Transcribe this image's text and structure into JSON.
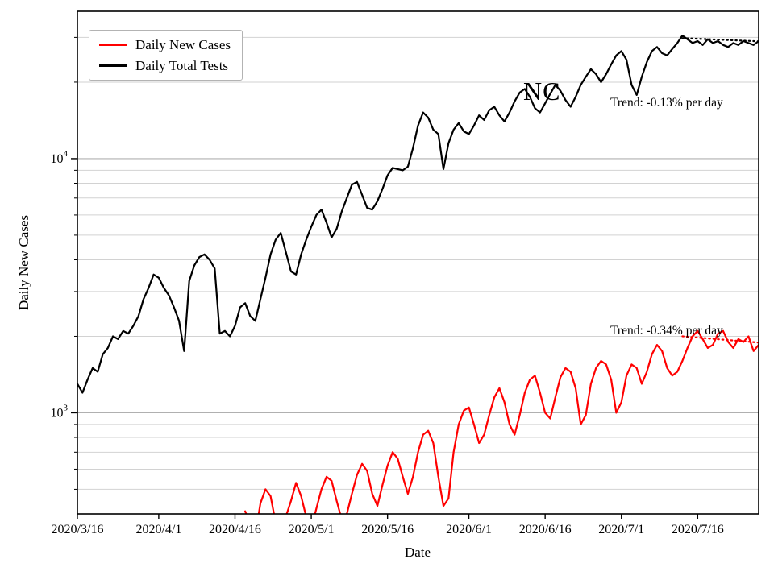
{
  "chart_data": {
    "type": "line",
    "title": "",
    "xlabel": "Date",
    "ylabel": "Daily New Cases",
    "yscale": "log",
    "ylim": [
      400,
      38000
    ],
    "y_major_ticks": [
      1000,
      10000
    ],
    "n_days": 135,
    "x_start_date": "2020/3/16",
    "x_tick_labels": [
      "2020/3/16",
      "2020/4/1",
      "2020/4/16",
      "2020/5/1",
      "2020/5/16",
      "2020/6/1",
      "2020/6/16",
      "2020/7/1",
      "2020/7/16"
    ],
    "x_tick_days": [
      0,
      16,
      31,
      46,
      61,
      77,
      92,
      107,
      122
    ],
    "grid": "horizontal major+minor",
    "legend": {
      "position": "upper-left",
      "entries": [
        {
          "label": "Daily New Cases",
          "color": "#ff0000"
        },
        {
          "label": "Daily Total Tests",
          "color": "#000000"
        }
      ]
    },
    "annotations": {
      "state_label": {
        "text": "NC"
      },
      "trend_tests": {
        "text": "Trend: -0.13% per day"
      },
      "trend_cases": {
        "text": "Trend: -0.34% per day"
      }
    },
    "series": [
      {
        "name": "Daily Total Tests",
        "color": "#000000",
        "values": [
          1300,
          1200,
          1350,
          1500,
          1450,
          1700,
          1800,
          2000,
          1950,
          2100,
          2050,
          2200,
          2400,
          2800,
          3100,
          3500,
          3400,
          3100,
          2900,
          2600,
          2300,
          1750,
          3300,
          3800,
          4100,
          4200,
          4000,
          3700,
          2050,
          2100,
          2000,
          2200,
          2600,
          2700,
          2400,
          2300,
          2800,
          3400,
          4200,
          4800,
          5100,
          4300,
          3600,
          3500,
          4200,
          4800,
          5400,
          6000,
          6300,
          5600,
          4900,
          5300,
          6200,
          7000,
          7900,
          8100,
          7200,
          6400,
          6300,
          6800,
          7600,
          8600,
          9200,
          9100,
          9000,
          9300,
          11000,
          13500,
          15200,
          14500,
          13000,
          12500,
          9100,
          11500,
          13000,
          13800,
          12800,
          12500,
          13500,
          14800,
          14200,
          15500,
          16000,
          14800,
          14000,
          15200,
          16800,
          18200,
          18800,
          17500,
          15800,
          15200,
          16500,
          18000,
          19500,
          18500,
          17000,
          16000,
          17500,
          19500,
          21000,
          22500,
          21500,
          20000,
          21500,
          23500,
          25500,
          26500,
          24500,
          19500,
          17800,
          21000,
          24000,
          26500,
          27500,
          26000,
          25500,
          27000,
          28500,
          30500,
          29500,
          28500,
          29000,
          28000,
          29500,
          28500,
          29000,
          28000,
          27500,
          28500,
          28000,
          29000,
          28500,
          28000,
          29000
        ]
      },
      {
        "name": "Daily New Cases",
        "color": "#ff0000",
        "values": [
          null,
          null,
          null,
          null,
          null,
          null,
          null,
          null,
          null,
          null,
          null,
          null,
          null,
          null,
          null,
          null,
          null,
          null,
          null,
          null,
          null,
          null,
          null,
          null,
          null,
          null,
          null,
          null,
          null,
          null,
          null,
          null,
          null,
          410,
          360,
          330,
          440,
          500,
          470,
          370,
          330,
          390,
          450,
          530,
          470,
          390,
          350,
          420,
          500,
          560,
          540,
          450,
          380,
          400,
          480,
          570,
          630,
          590,
          480,
          430,
          520,
          620,
          700,
          660,
          560,
          480,
          560,
          700,
          820,
          850,
          760,
          560,
          430,
          460,
          700,
          900,
          1020,
          1050,
          900,
          760,
          820,
          980,
          1150,
          1250,
          1100,
          900,
          820,
          980,
          1200,
          1350,
          1400,
          1200,
          1000,
          950,
          1150,
          1380,
          1500,
          1450,
          1250,
          900,
          980,
          1300,
          1500,
          1600,
          1550,
          1350,
          1000,
          1100,
          1400,
          1550,
          1500,
          1300,
          1450,
          1700,
          1850,
          1750,
          1500,
          1400,
          1450,
          1600,
          1800,
          2000,
          2100,
          1950,
          1800,
          1850,
          2050,
          2100,
          1900,
          1800,
          1950,
          1900,
          2000,
          1750,
          1850
        ]
      }
    ],
    "trend_lines": [
      {
        "series": "Daily Total Tests",
        "color": "#000000",
        "start_day": 119,
        "end_day": 134,
        "start_value": 29800,
        "end_value": 28950,
        "rate_label": "Trend: -0.13% per day"
      },
      {
        "series": "Daily New Cases",
        "color": "#ff0000",
        "start_day": 119,
        "end_day": 134,
        "start_value": 2000,
        "end_value": 1890,
        "rate_label": "Trend: -0.34% per day"
      }
    ]
  }
}
